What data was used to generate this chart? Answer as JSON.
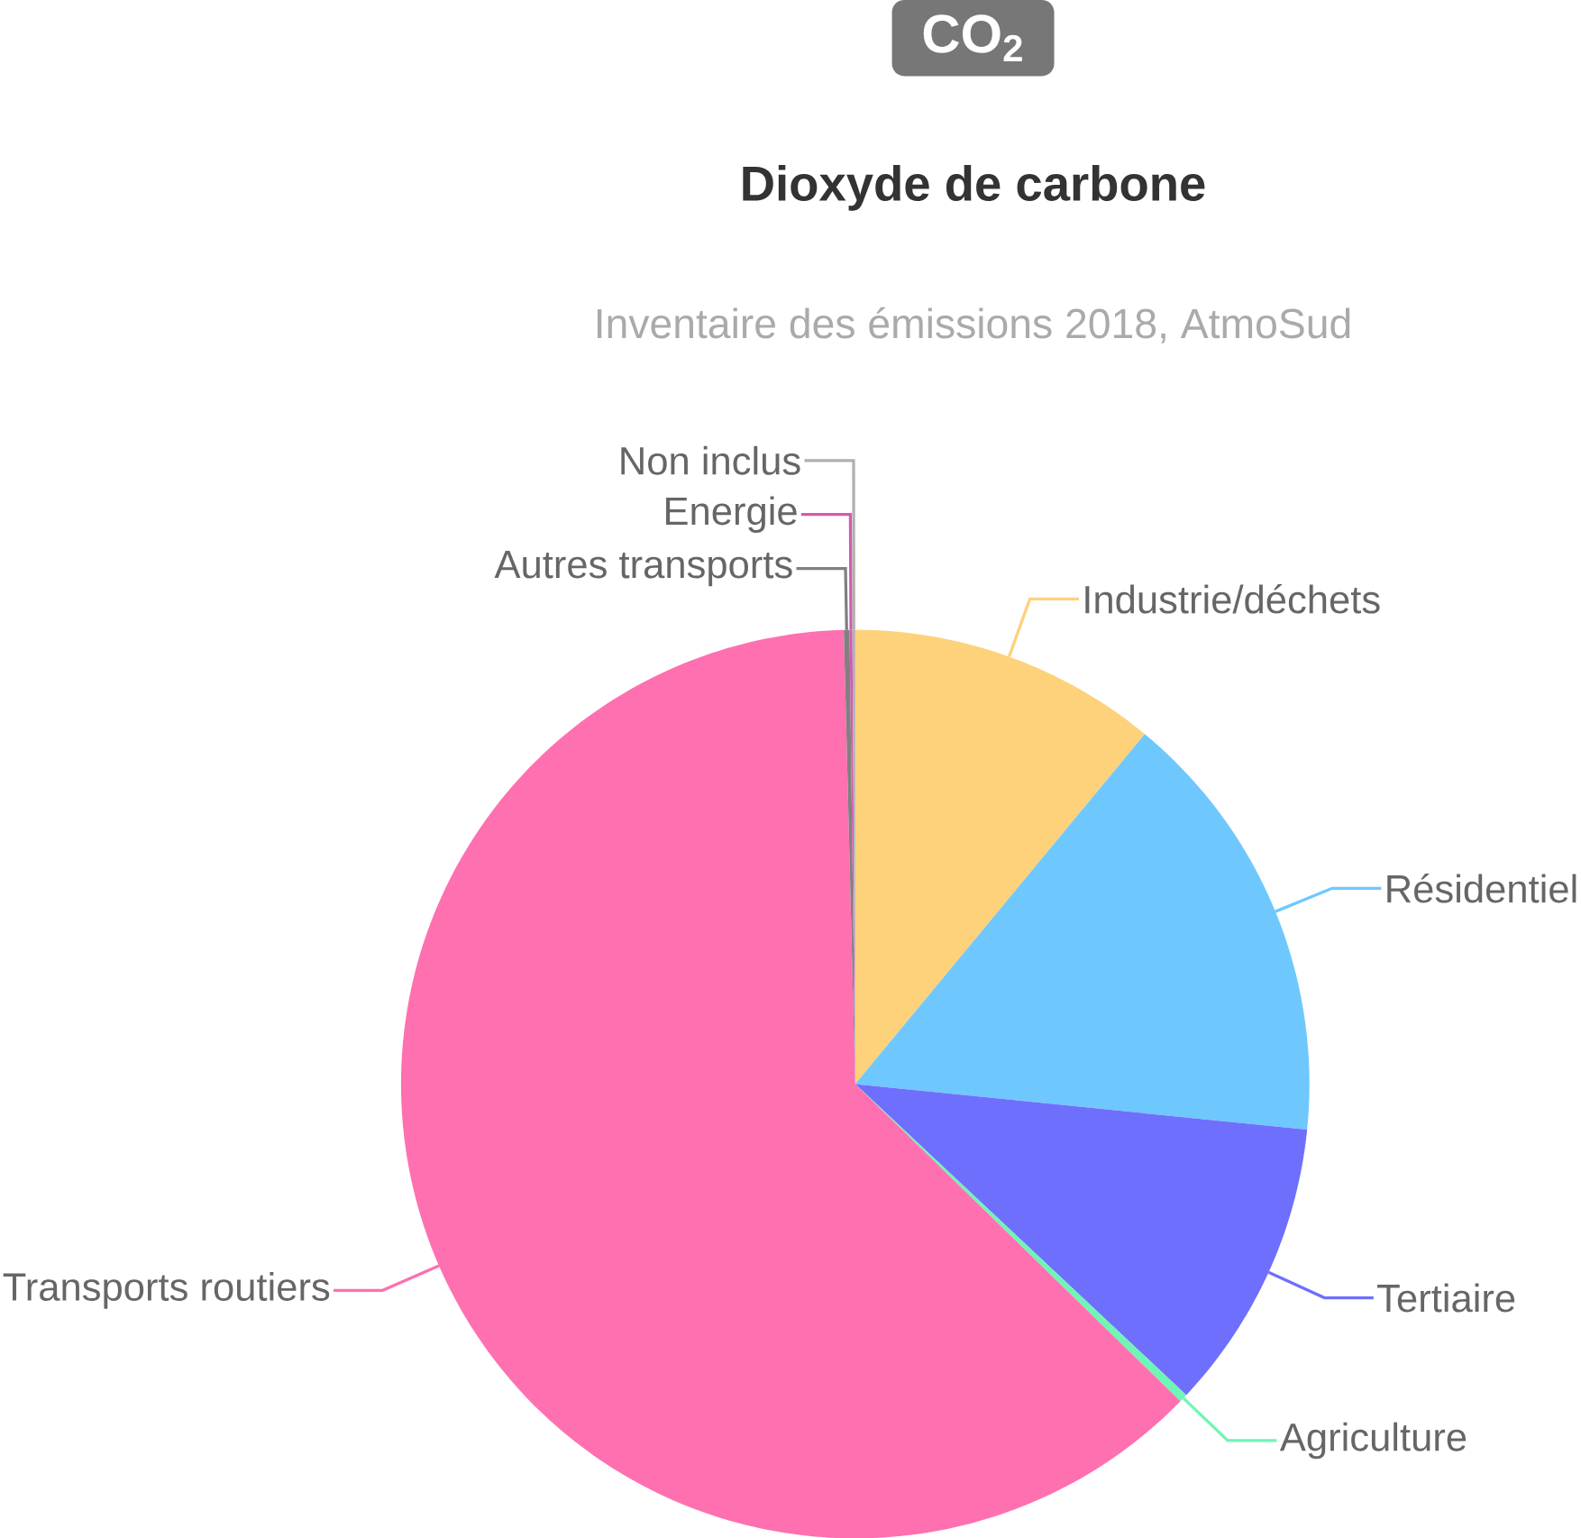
{
  "chart_data": {
    "type": "pie",
    "title": "CO$_{2}$",
    "subtitle": "Dioxyde de carbone",
    "annotations": [
      "Inventaire des émissions 2018, AtmoSud"
    ],
    "categories": [
      "Industrie/déchets",
      "Résidentiel",
      "Tertiaire",
      "Agriculture",
      "Transports routiers",
      "Autres transports",
      "Energie",
      "Non inclus"
    ],
    "values": [
      11.0,
      15.6,
      10.4,
      0.3,
      62.3,
      0.2,
      0.1,
      0.1
    ],
    "colors": [
      "#fdd27a",
      "#6fc8fd",
      "#6f6ffd",
      "#6ff5b5",
      "#ff70b0",
      "#808080",
      "#d35ab0",
      "#b0b0b0"
    ]
  }
}
